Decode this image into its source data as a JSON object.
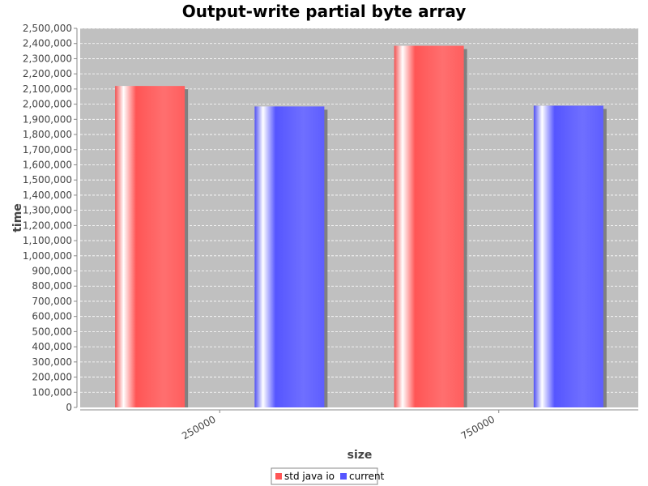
{
  "chart_data": {
    "type": "bar",
    "title": "Output-write partial byte array",
    "xlabel": "size",
    "ylabel": "time",
    "categories": [
      "250000",
      "750000"
    ],
    "series": [
      {
        "name": "std java io",
        "values": [
          2120000,
          2385000
        ],
        "color": "#ff5555"
      },
      {
        "name": "current",
        "values": [
          1985000,
          1990000
        ],
        "color": "#5555ff"
      }
    ],
    "ylim": [
      0,
      2500000
    ],
    "yticks": [
      0,
      100000,
      200000,
      300000,
      400000,
      500000,
      600000,
      700000,
      800000,
      900000,
      1000000,
      1100000,
      1200000,
      1300000,
      1400000,
      1500000,
      1600000,
      1700000,
      1800000,
      1900000,
      2000000,
      2100000,
      2200000,
      2300000,
      2400000,
      2500000
    ],
    "grid": true,
    "legend_position": "bottom",
    "plot_background": "#c0c0c0"
  }
}
